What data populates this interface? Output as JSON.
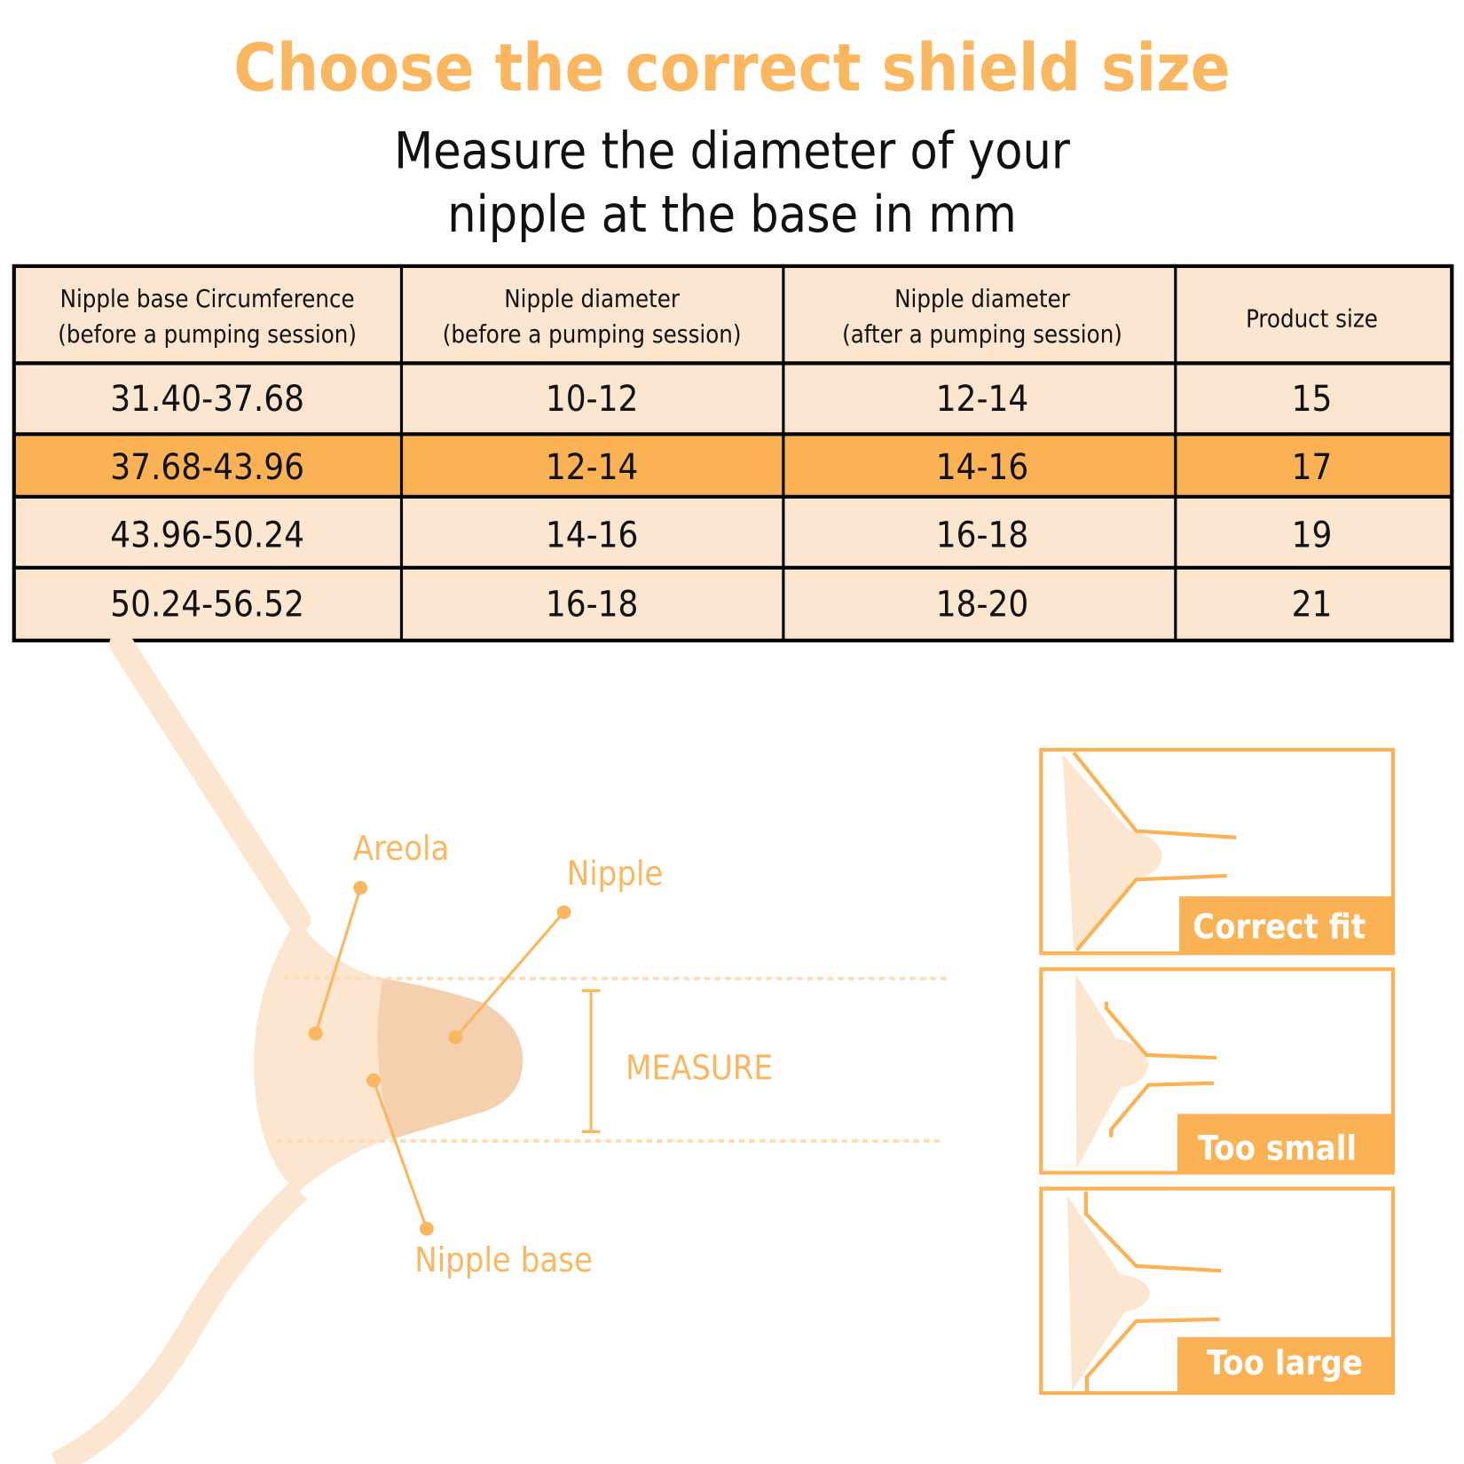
{
  "title": "Choose the correct shield size",
  "subtitle": [
    "Measure the diameter of your",
    "nipple at the base in mm"
  ],
  "colors": {
    "accent": "#FBB254",
    "cell": "#FDE6CF",
    "nipple": "#F5D0AE",
    "border": "#000000"
  },
  "table": {
    "headers": [
      [
        "Nipple base Circumference",
        "(before a pumping session)"
      ],
      [
        "Nipple diameter",
        "(before a pumping session)"
      ],
      [
        "Nipple diameter",
        "(after a pumping session)"
      ],
      [
        "Product size"
      ]
    ],
    "rows": [
      [
        "31.40-37.68",
        "10-12",
        "12-14",
        "15"
      ],
      [
        "37.68-43.96",
        "12-14",
        "14-16",
        "17"
      ],
      [
        "43.96-50.24",
        "14-16",
        "16-18",
        "19"
      ],
      [
        "50.24-56.52",
        "16-18",
        "18-20",
        "21"
      ]
    ],
    "highlighted_row": 1
  },
  "diagram": {
    "areola": "Areola",
    "nipple": "Nipple",
    "nipple_base": "Nipple base",
    "measure": "MEASURE"
  },
  "fits": [
    "Correct fit",
    "Too small",
    "Too large"
  ]
}
